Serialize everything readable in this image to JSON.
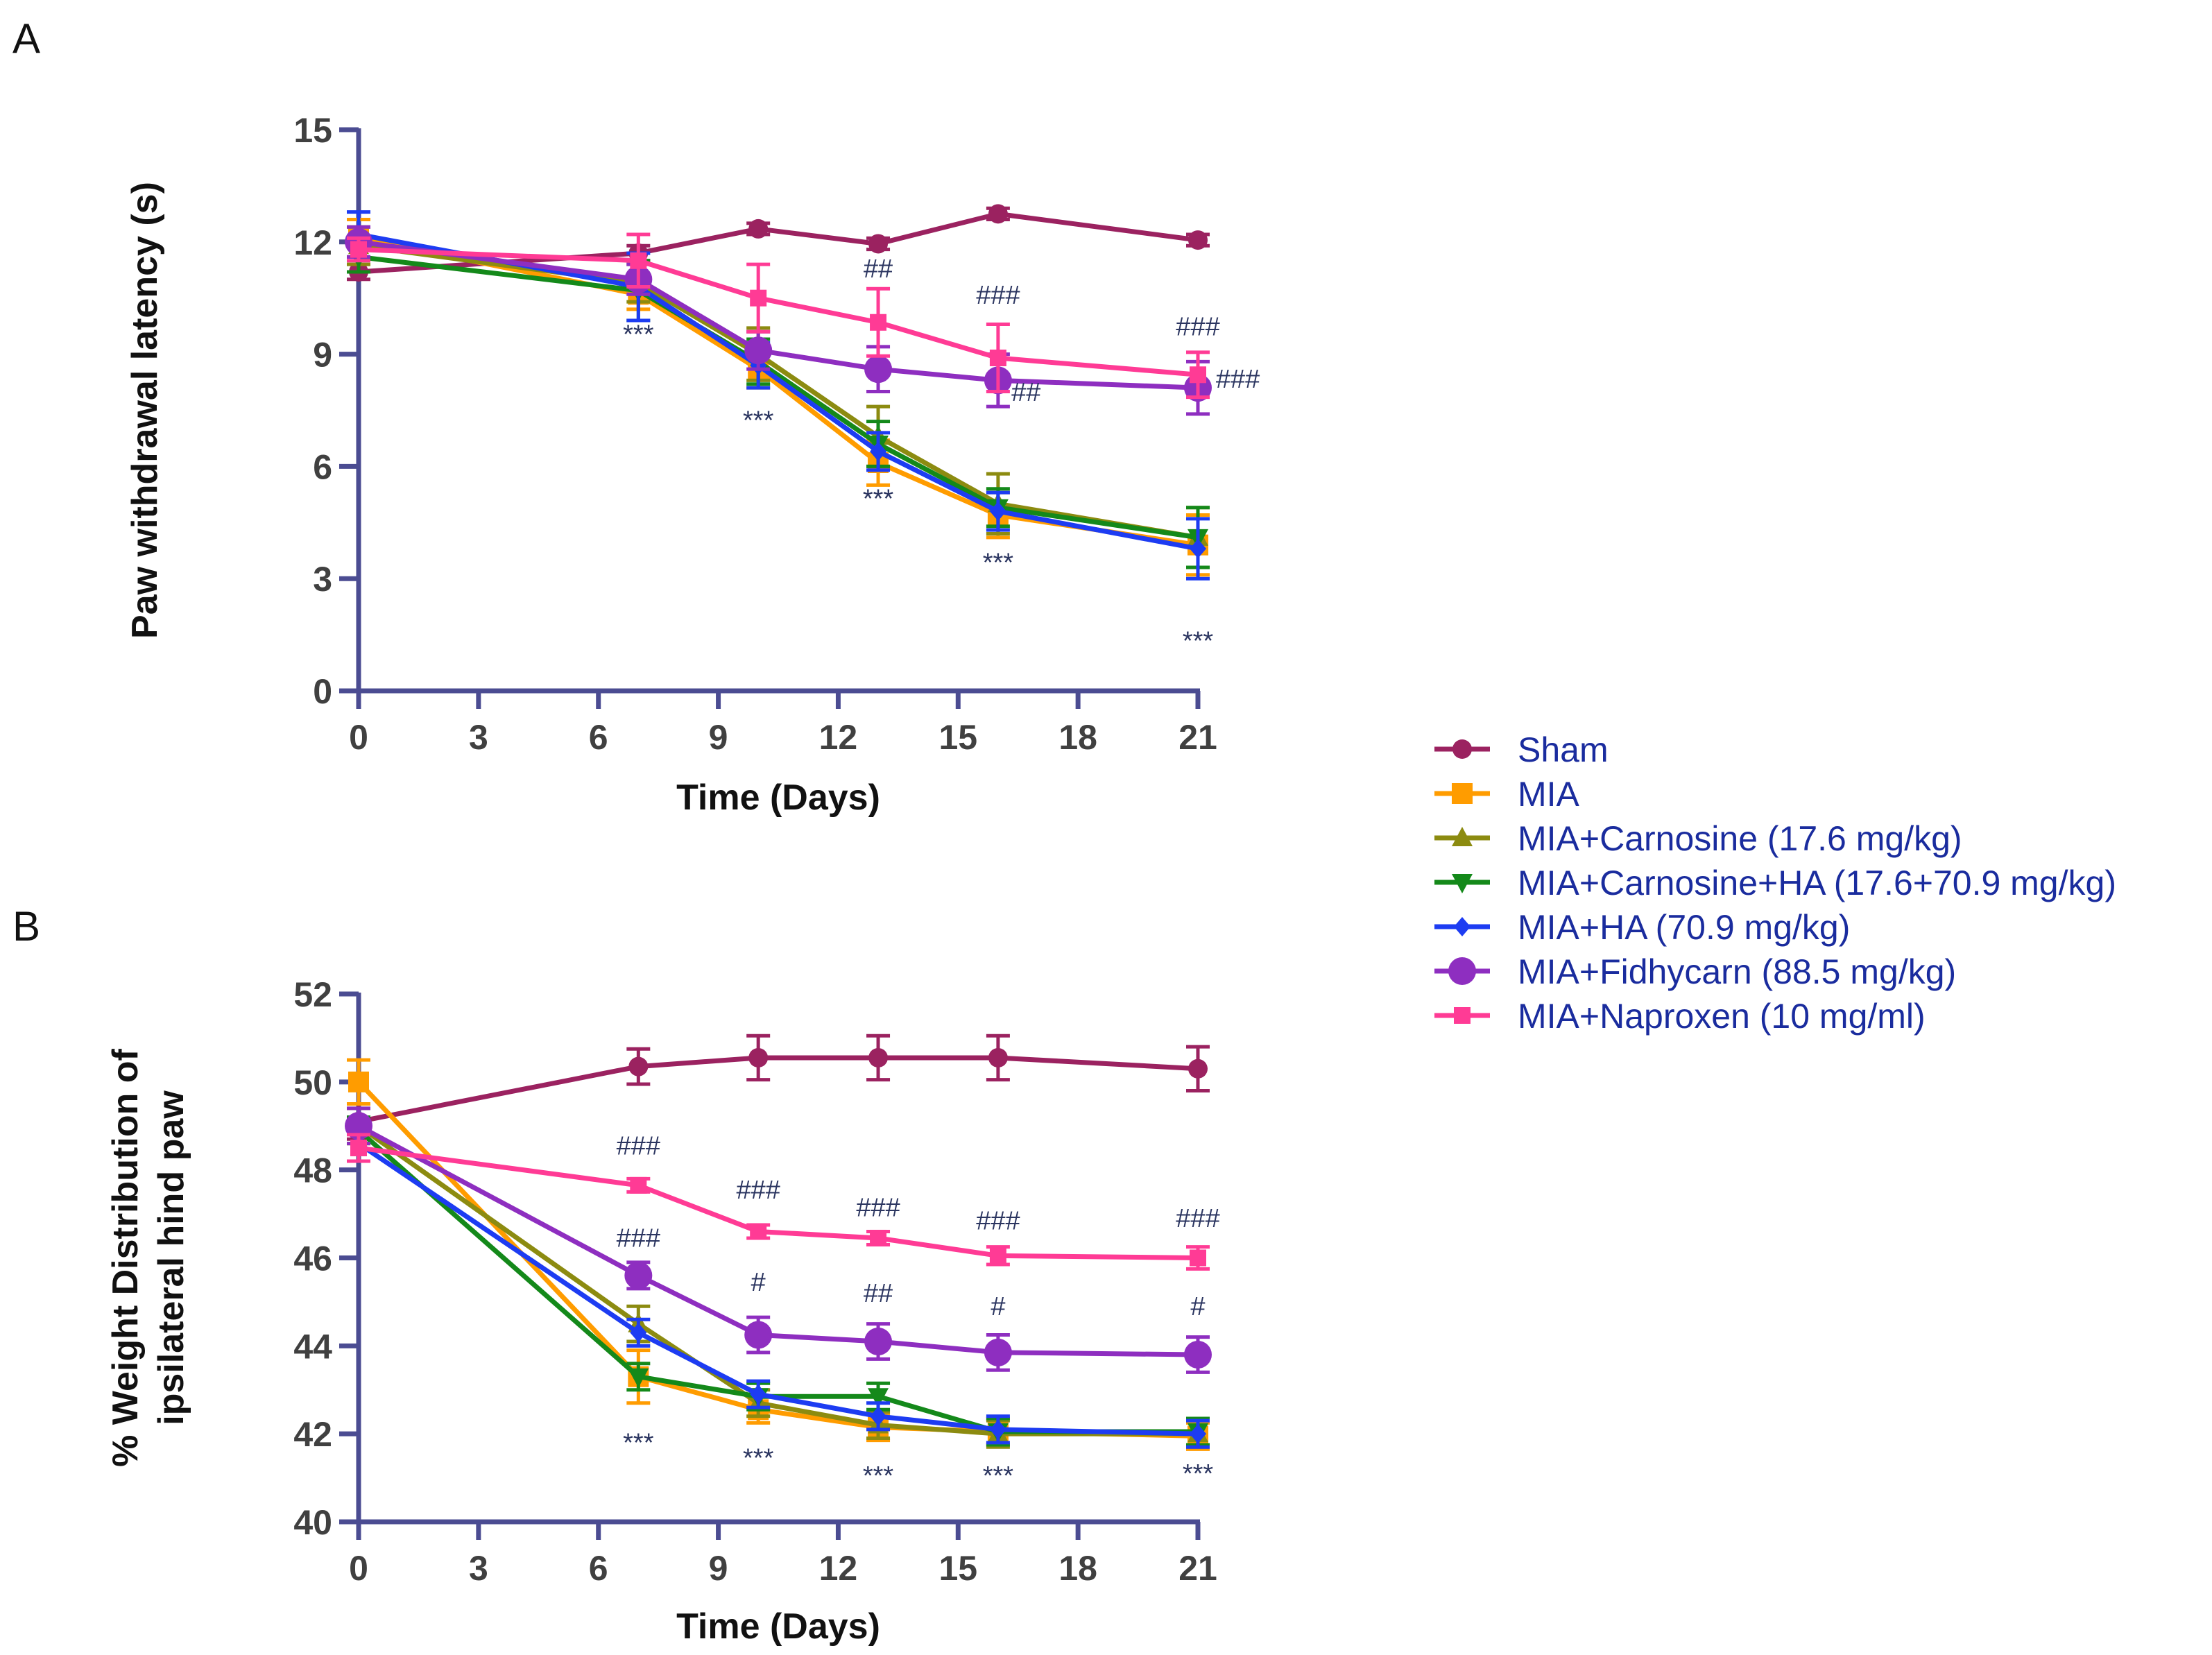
{
  "legend": [
    {
      "name": "Sham",
      "color": "#9b2260",
      "marker": "circle"
    },
    {
      "name": "MIA",
      "color": "#ff9c00",
      "marker": "square"
    },
    {
      "name": "MIA+Carnosine (17.6 mg/kg)",
      "color": "#8c8b10",
      "marker": "triangle-up"
    },
    {
      "name": "MIA+Carnosine+HA (17.6+70.9 mg/kg)",
      "color": "#14891a",
      "marker": "triangle-down"
    },
    {
      "name": "MIA+HA (70.9 mg/kg)",
      "color": "#1d3cf2",
      "marker": "diamond"
    },
    {
      "name": "MIA+Fidhycarn (88.5 mg/kg)",
      "color": "#8e2ec0",
      "marker": "circle-large"
    },
    {
      "name": "MIA+Naproxen (10 mg/ml)",
      "color": "#ff3b95",
      "marker": "square-small"
    }
  ],
  "chart_data": [
    {
      "type": "line",
      "panel": "A",
      "xlabel": "Time (Days)",
      "ylabel": "Paw withdrawal latency (s)",
      "xlim": [
        0,
        21
      ],
      "ylim": [
        0,
        15
      ],
      "xticks": [
        0,
        3,
        6,
        9,
        12,
        15,
        18,
        21
      ],
      "yticks": [
        0,
        3,
        6,
        9,
        12,
        15
      ],
      "series": [
        {
          "name": "Sham",
          "x": [
            0,
            7,
            10,
            13,
            16,
            21
          ],
          "values": [
            11.2,
            11.7,
            12.35,
            11.95,
            12.75,
            12.05
          ],
          "err": [
            0.2,
            0.2,
            0.15,
            0.15,
            0.15,
            0.15
          ]
        },
        {
          "name": "MIA",
          "x": [
            0,
            7,
            10,
            13,
            16,
            21
          ],
          "values": [
            12.1,
            10.6,
            8.6,
            6.1,
            4.7,
            3.9
          ],
          "err": [
            0.5,
            0.4,
            0.5,
            0.6,
            0.6,
            0.8
          ]
        },
        {
          "name": "MIA+Carnosine (17.6 mg/kg)",
          "x": [
            0,
            7,
            10,
            13,
            16,
            21
          ],
          "values": [
            11.9,
            10.9,
            9.0,
            6.8,
            5.0,
            4.1
          ],
          "err": [
            0.5,
            0.5,
            0.7,
            0.8,
            0.8,
            0.8
          ]
        },
        {
          "name": "MIA+Carnosine+HA (17.6+70.9 mg/kg)",
          "x": [
            0,
            7,
            10,
            13,
            16,
            21
          ],
          "values": [
            11.6,
            10.7,
            8.8,
            6.6,
            4.9,
            4.1
          ],
          "err": [
            0.4,
            0.8,
            0.6,
            0.6,
            0.5,
            0.8
          ]
        },
        {
          "name": "MIA+HA (70.9 mg/kg)",
          "x": [
            0,
            7,
            10,
            13,
            16,
            21
          ],
          "values": [
            12.2,
            10.8,
            8.7,
            6.4,
            4.8,
            3.8
          ],
          "err": [
            0.6,
            0.9,
            0.6,
            0.5,
            0.5,
            0.8
          ]
        },
        {
          "name": "MIA+Fidhycarn (88.5 mg/kg)",
          "x": [
            0,
            7,
            10,
            13,
            16,
            21
          ],
          "values": [
            12.0,
            11.0,
            9.1,
            8.6,
            8.3,
            8.1
          ],
          "err": [
            0.4,
            0.4,
            0.5,
            0.6,
            0.7,
            0.7
          ]
        },
        {
          "name": "MIA+Naproxen (10 mg/ml)",
          "x": [
            0,
            7,
            10,
            13,
            16,
            21
          ],
          "values": [
            11.8,
            11.5,
            10.5,
            9.85,
            8.9,
            8.45
          ],
          "err": [
            0.3,
            0.7,
            0.9,
            0.9,
            0.9,
            0.6
          ]
        }
      ],
      "annotations": [
        {
          "text": "***",
          "x": 7,
          "y": 9.3
        },
        {
          "text": "***",
          "x": 10,
          "y": 7.0
        },
        {
          "text": "***",
          "x": 13,
          "y": 4.9
        },
        {
          "text": "***",
          "x": 16,
          "y": 3.2
        },
        {
          "text": "***",
          "x": 21,
          "y": 1.1
        },
        {
          "text": "##",
          "x": 13,
          "y": 11.05
        },
        {
          "text": "###",
          "x": 16,
          "y": 10.35
        },
        {
          "text": "###",
          "x": 21,
          "y": 9.5
        },
        {
          "text": "##",
          "x": 16.7,
          "y": 7.75
        },
        {
          "text": "###",
          "x": 22.0,
          "y": 8.1
        }
      ]
    },
    {
      "type": "line",
      "panel": "B",
      "xlabel": "Time (Days)",
      "ylabel": "% Weight Distribution of ipsilateral hind paw",
      "ylabel_lines": [
        "% Weight Distribution of",
        "ipsilateral hind paw"
      ],
      "xlim": [
        0,
        21
      ],
      "ylim": [
        40,
        52
      ],
      "xticks": [
        0,
        3,
        6,
        9,
        12,
        15,
        18,
        21
      ],
      "yticks": [
        40,
        42,
        44,
        46,
        48,
        50,
        52
      ],
      "series": [
        {
          "name": "Sham",
          "x": [
            0,
            7,
            10,
            13,
            16,
            21
          ],
          "values": [
            49.1,
            50.35,
            50.55,
            50.55,
            50.55,
            50.3
          ],
          "err": [
            0.4,
            0.4,
            0.5,
            0.5,
            0.5,
            0.5
          ]
        },
        {
          "name": "MIA",
          "x": [
            0,
            7,
            10,
            13,
            16,
            21
          ],
          "values": [
            50.0,
            43.3,
            42.55,
            42.15,
            42.05,
            41.95
          ],
          "err": [
            0.5,
            0.6,
            0.3,
            0.3,
            0.3,
            0.3
          ]
        },
        {
          "name": "MIA+Carnosine (17.6 mg/kg)",
          "x": [
            0,
            7,
            10,
            13,
            16,
            21
          ],
          "values": [
            49.0,
            44.5,
            42.7,
            42.2,
            42.0,
            42.0
          ],
          "err": [
            0.4,
            0.4,
            0.3,
            0.3,
            0.3,
            0.3
          ]
        },
        {
          "name": "MIA+Carnosine+HA (17.6+70.9 mg/kg)",
          "x": [
            0,
            7,
            10,
            13,
            16,
            21
          ],
          "values": [
            48.9,
            43.3,
            42.85,
            42.85,
            42.05,
            42.05
          ],
          "err": [
            0.3,
            0.3,
            0.3,
            0.3,
            0.3,
            0.3
          ]
        },
        {
          "name": "MIA+HA (70.9 mg/kg)",
          "x": [
            0,
            7,
            10,
            13,
            16,
            21
          ],
          "values": [
            48.6,
            44.3,
            42.9,
            42.4,
            42.1,
            42.0
          ],
          "err": [
            0.4,
            0.3,
            0.3,
            0.3,
            0.3,
            0.3
          ]
        },
        {
          "name": "MIA+Fidhycarn (88.5 mg/kg)",
          "x": [
            0,
            7,
            10,
            13,
            16,
            21
          ],
          "values": [
            49.0,
            45.6,
            44.25,
            44.1,
            43.85,
            43.8
          ],
          "err": [
            0.4,
            0.3,
            0.4,
            0.4,
            0.4,
            0.4
          ]
        },
        {
          "name": "MIA+Naproxen (10 mg/ml)",
          "x": [
            0,
            7,
            10,
            13,
            16,
            21
          ],
          "values": [
            48.5,
            47.65,
            46.6,
            46.45,
            46.05,
            46.0
          ],
          "err": [
            0.3,
            0.15,
            0.15,
            0.15,
            0.2,
            0.25
          ]
        }
      ],
      "annotations": [
        {
          "text": "###",
          "x": 7,
          "y": 48.35
        },
        {
          "text": "###",
          "x": 10,
          "y": 47.35
        },
        {
          "text": "###",
          "x": 13,
          "y": 46.95
        },
        {
          "text": "###",
          "x": 16,
          "y": 46.65
        },
        {
          "text": "###",
          "x": 21,
          "y": 46.7
        },
        {
          "text": "###",
          "x": 7,
          "y": 46.25
        },
        {
          "text": "#",
          "x": 10,
          "y": 45.25
        },
        {
          "text": "##",
          "x": 13,
          "y": 45.0
        },
        {
          "text": "#",
          "x": 16,
          "y": 44.7
        },
        {
          "text": "#",
          "x": 21,
          "y": 44.7
        },
        {
          "text": "***",
          "x": 7,
          "y": 41.6
        },
        {
          "text": "***",
          "x": 10,
          "y": 41.25
        },
        {
          "text": "***",
          "x": 13,
          "y": 40.85
        },
        {
          "text": "***",
          "x": 16,
          "y": 40.85
        },
        {
          "text": "***",
          "x": 21,
          "y": 40.9
        }
      ]
    }
  ]
}
